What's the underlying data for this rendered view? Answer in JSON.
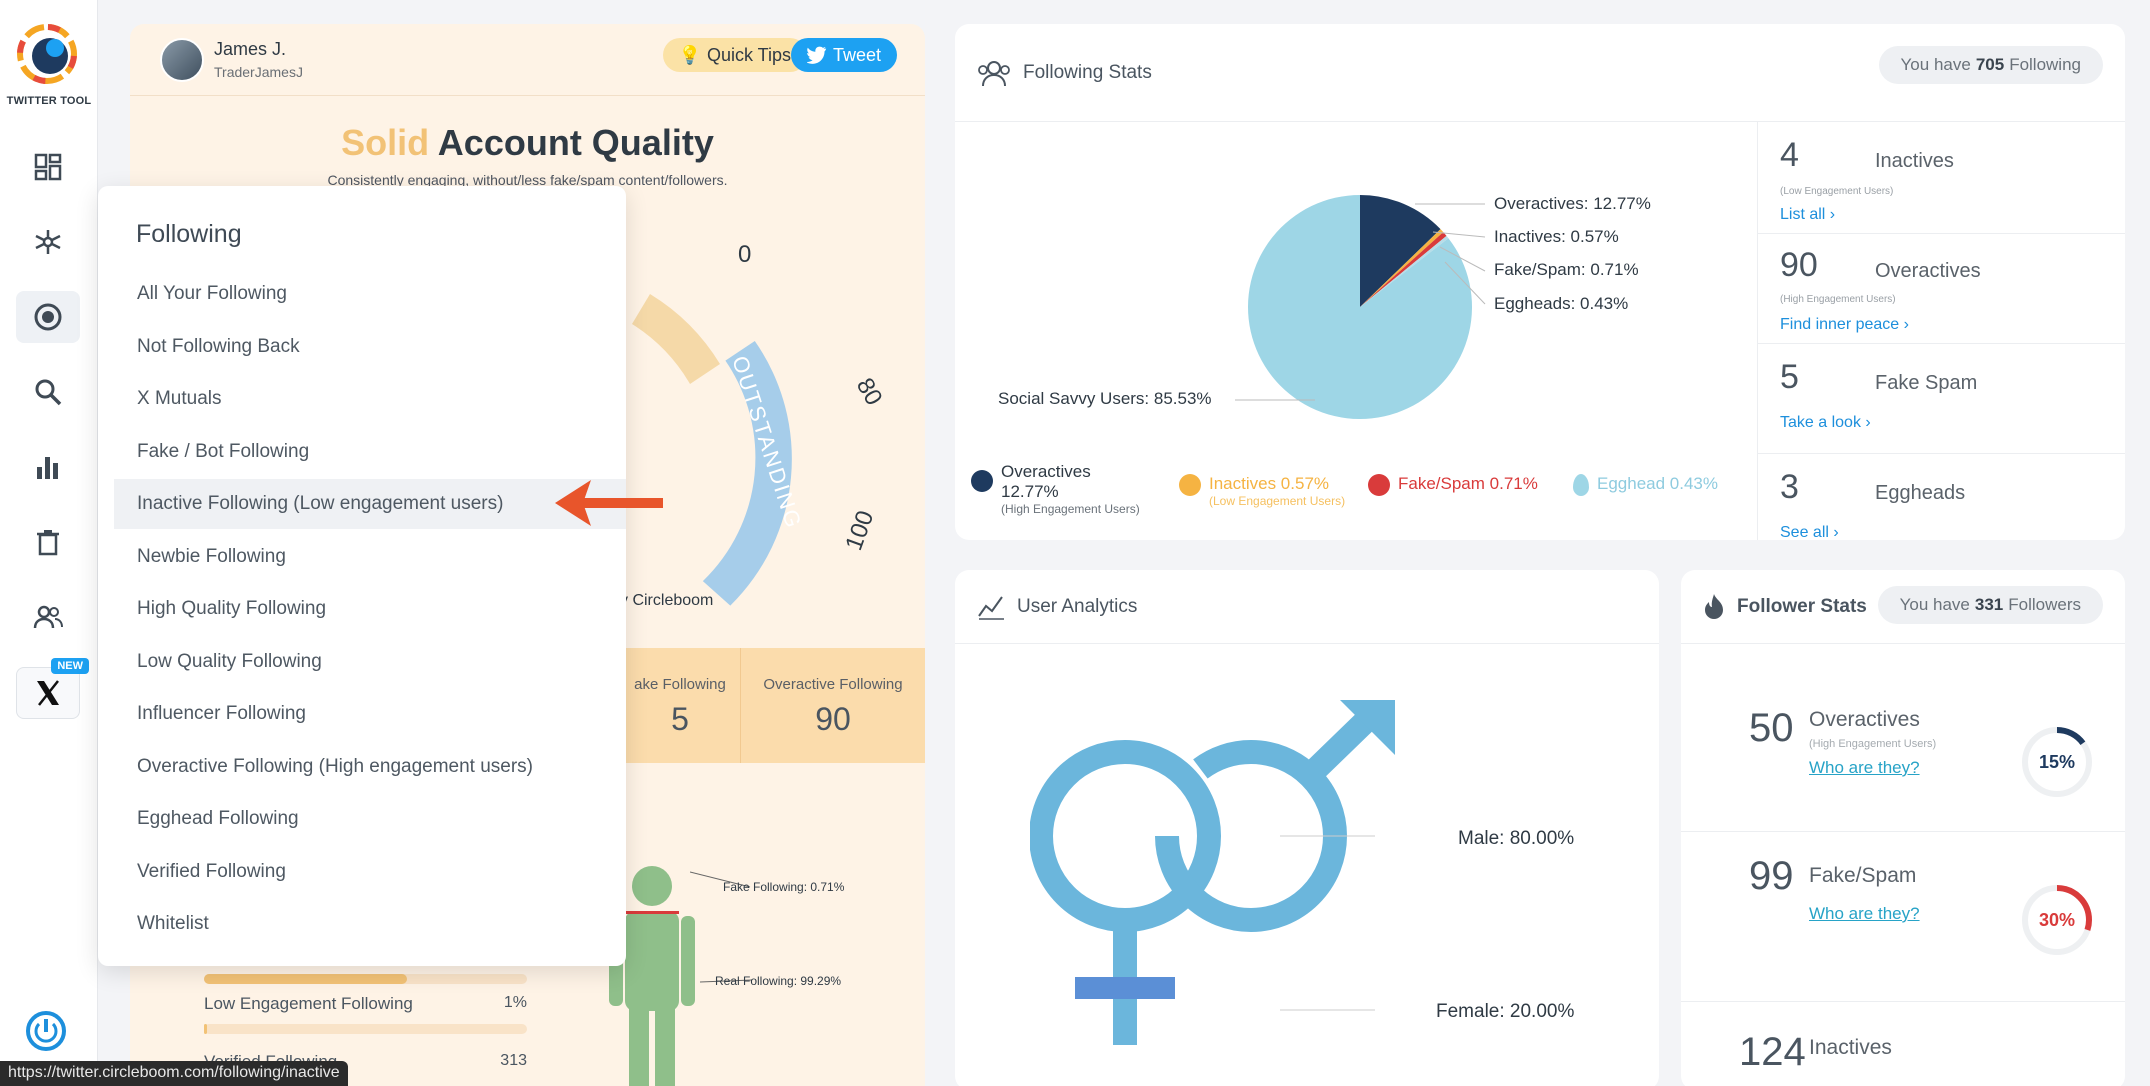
{
  "sidebar": {
    "logo_text": "TWITTER TOOL",
    "new_badge": "NEW",
    "icons": [
      "dashboard-icon",
      "network-icon",
      "circle-target-icon",
      "search-icon",
      "bar-chart-icon",
      "trash-icon",
      "users-icon",
      "x-logo-icon",
      "power-icon"
    ]
  },
  "quality": {
    "user_name": "James J.",
    "user_handle": "TraderJamesJ",
    "tips_label": "Quick Tips",
    "tweet_label": "Tweet",
    "title_word": "Solid",
    "title_rest": " Account Quality",
    "subtitle": "Consistently engaging, without/less fake/spam content/followers.",
    "gauge_band_label": "OUTSTANDING",
    "gauge_ticks": [
      "80",
      "100"
    ],
    "gauge_partial_tick": "0",
    "by_text": "y Circleboom",
    "stat_fake_label": "ake Following",
    "stat_fake_value": "5",
    "stat_over_label": "Overactive Following",
    "stat_over_value": "90",
    "person_fake_label": "Fake Following: 0.71%",
    "person_real_label": "Real Following: 99.29%",
    "rows": [
      {
        "label": "Low Engagement Following",
        "pct": "1%",
        "fill": 0.01
      },
      {
        "label": "Verified Following",
        "pct": "313",
        "fill": 0
      }
    ],
    "top_bar_fill": 0.63
  },
  "menu": {
    "title": "Following",
    "items": [
      "All Your Following",
      "Not Following Back",
      "X Mutuals",
      "Fake / Bot Following",
      "Inactive Following (Low engagement users)",
      "Newbie Following",
      "High Quality Following",
      "Low Quality Following",
      "Influencer Following",
      "Overactive Following (High engagement users)",
      "Egghead Following",
      "Verified Following",
      "Whitelist"
    ],
    "highlighted_index": 4
  },
  "following_stats": {
    "title": "Following Stats",
    "pill_prefix": "You have",
    "pill_count": "705",
    "pill_suffix": "Following",
    "pie_labels": {
      "overactives": "Overactives: 12.77%",
      "inactives": "Inactives: 0.57%",
      "fake": "Fake/Spam: 0.71%",
      "eggheads": "Eggheads: 0.43%",
      "social": "Social Savvy Users: 85.53%"
    },
    "legend": {
      "over_title": "Overactives",
      "over_pct": "12.77%",
      "over_sub": "(High Engagement Users)",
      "inactive": "Inactives 0.57%",
      "inactive_sub": "(Low Engagement Users)",
      "fake": "Fake/Spam 0.71%",
      "egg": "Egghead 0.43%"
    },
    "side": [
      {
        "num": "4",
        "name": "Inactives",
        "sub": "(Low Engagement Users)",
        "link": "List all ›"
      },
      {
        "num": "90",
        "name": "Overactives",
        "sub": "(High Engagement Users)",
        "link": "Find inner peace ›"
      },
      {
        "num": "5",
        "name": "Fake Spam",
        "sub": "",
        "link": "Take a look ›"
      },
      {
        "num": "3",
        "name": "Eggheads",
        "sub": "",
        "link": "See all ›"
      }
    ],
    "colors": {
      "overactives": "#1e3a5f",
      "inactives": "#f5b342",
      "fake": "#d93b3b",
      "eggheads": "#b8dde8",
      "social": "#9ed6e6"
    },
    "chart_data": {
      "type": "pie",
      "categories": [
        "Overactives",
        "Inactives",
        "Fake/Spam",
        "Eggheads",
        "Social Savvy Users"
      ],
      "values": [
        12.77,
        0.57,
        0.71,
        0.43,
        85.53
      ]
    }
  },
  "user_analytics": {
    "title": "User Analytics",
    "male_label": "Male: 80.00%",
    "female_label": "Female: 20.00%"
  },
  "follower_stats": {
    "title": "Follower Stats",
    "pill_prefix": "You have",
    "pill_count": "331",
    "pill_suffix": "Followers",
    "rows": [
      {
        "num": "50",
        "name": "Overactives",
        "sub": "(High Engagement Users)",
        "link": "Who are they?",
        "ring": "15%",
        "ring_value": 0.15,
        "ring_color": "#1e3a5f"
      },
      {
        "num": "99",
        "name": "Fake/Spam",
        "sub": "",
        "link": "Who are they?",
        "ring": "30%",
        "ring_value": 0.3,
        "ring_color": "#d93b3b"
      },
      {
        "num": "124",
        "name": "Inactives",
        "sub": "",
        "link": "",
        "ring": "",
        "ring_value": 0,
        "ring_color": "#f5b342"
      }
    ]
  },
  "status_url": "https://twitter.circleboom.com/following/inactive"
}
